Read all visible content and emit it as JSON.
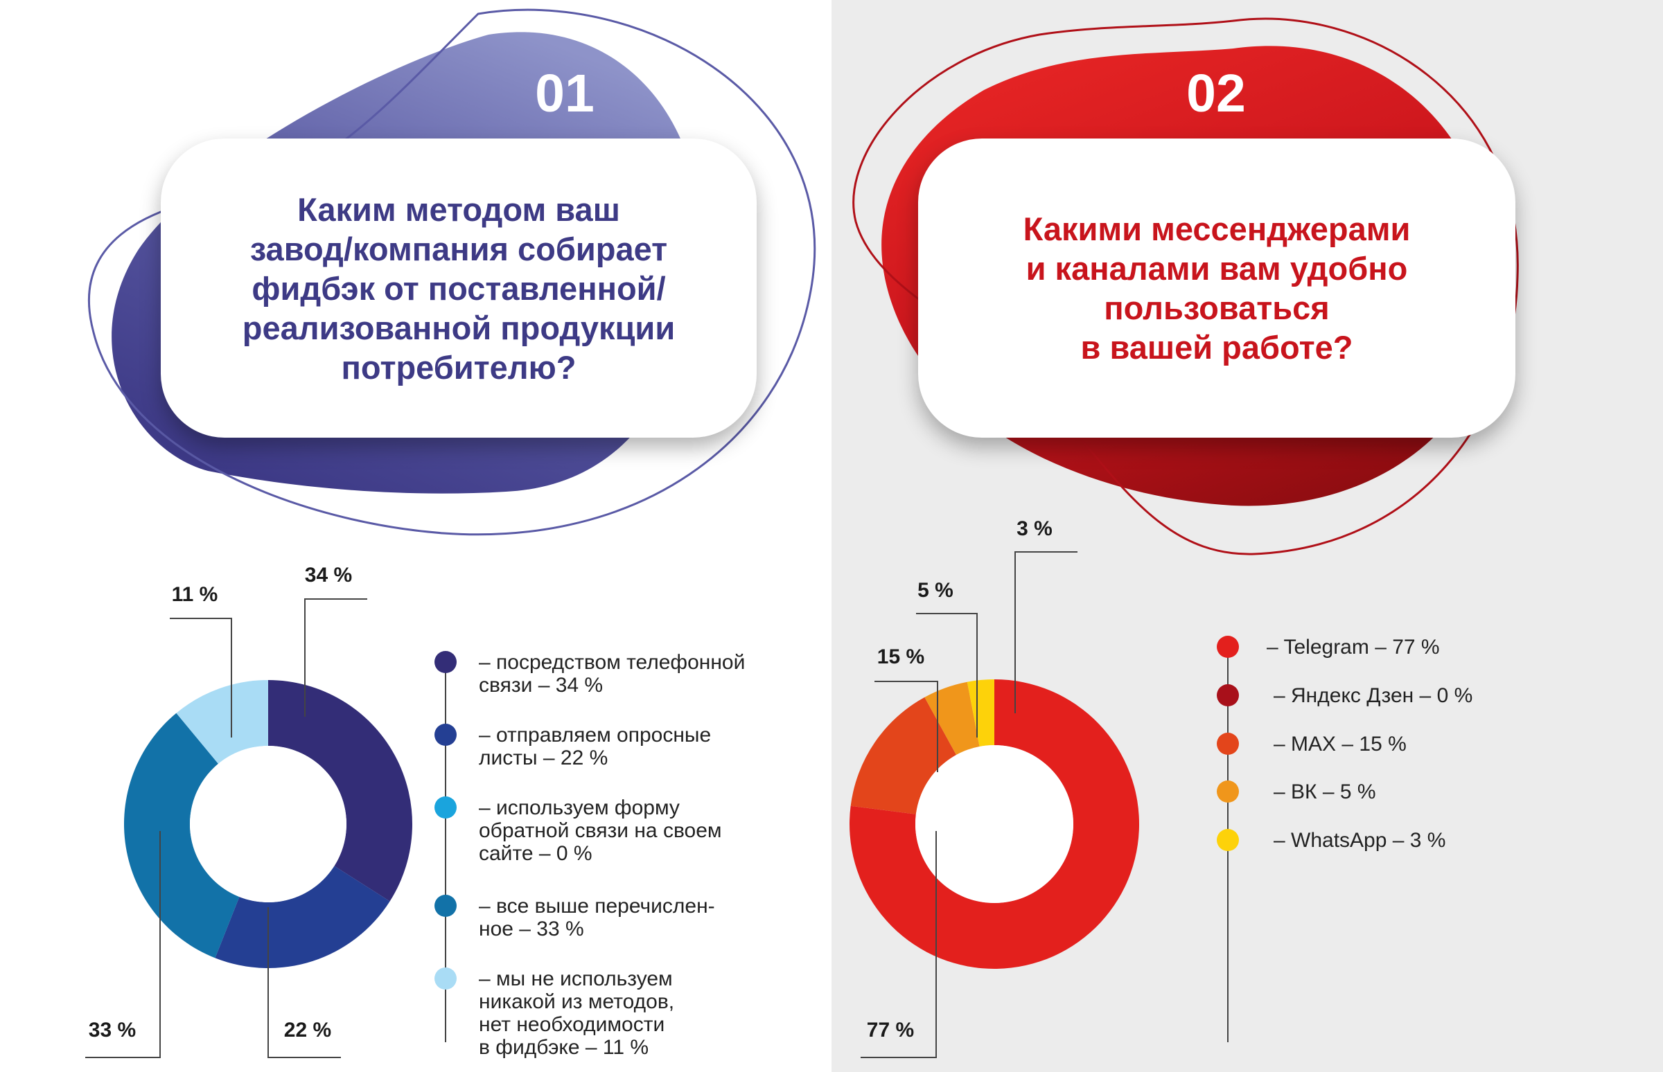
{
  "colors": {
    "left_accent": "#3d3a85",
    "right_accent": "#c8141c",
    "right_panel_bg": "#ececec"
  },
  "left": {
    "number": "01",
    "question": "Каким методом ваш\nзавод/компания собирает\nфидбэк от поставленной/\nреализованной продукции\nпотребителю?",
    "legend": [
      {
        "text": "– посредством телефонной\nсвязи – 34 %",
        "color": "#332d77"
      },
      {
        "text": "– отправляем опросные\nлисты – 22 %",
        "color": "#243f93"
      },
      {
        "text": "– используем форму\nобратной связи на своем\nсайте – 0 %",
        "color": "#1aa4dd"
      },
      {
        "text": "– все выше перечислен-\nное – 33 %",
        "color": "#1272a8"
      },
      {
        "text": "– мы не используем\nникакой из методов,\nнет необходимости\nв фидбэке – 11 %",
        "color": "#a9dcf5"
      }
    ]
  },
  "right": {
    "number": "02",
    "question": "Какими мессенджерами\nи каналами вам удобно\nпользоваться\nв вашей работе?",
    "legend": [
      {
        "text": "–  Telegram – 77 %",
        "color": "#e3201d"
      },
      {
        "text": "–  Яндекс Дзен – 0 %",
        "color": "#a8101a"
      },
      {
        "text": "–  MAX – 15 %",
        "color": "#e3451b"
      },
      {
        "text": "–  ВК – 5 %",
        "color": "#f0961b"
      },
      {
        "text": "–  WhatsApp – 3 %",
        "color": "#fdd20a"
      }
    ]
  },
  "chart_data": [
    {
      "type": "pie",
      "categories": [
        "посредством телефонной связи",
        "отправляем опросные листы",
        "используем форму обратной связи на своем сайте",
        "все выше перечисленное",
        "мы не используем никакой из методов, нет необходимости в фидбэке"
      ],
      "values": [
        34,
        22,
        0,
        33,
        11
      ],
      "colors": [
        "#332d77",
        "#243f93",
        "#1aa4dd",
        "#1272a8",
        "#a9dcf5"
      ],
      "data_labels": [
        "34 %",
        "22 %",
        "",
        "33 %",
        "11 %"
      ],
      "donut": true,
      "legend": "right"
    },
    {
      "type": "pie",
      "categories": [
        "Telegram",
        "Яндекс Дзен",
        "MAX",
        "ВК",
        "WhatsApp"
      ],
      "values": [
        77,
        0,
        15,
        5,
        3
      ],
      "colors": [
        "#e3201d",
        "#a8101a",
        "#e3451b",
        "#f0961b",
        "#fdd20a"
      ],
      "data_labels": [
        "77 %",
        "",
        "15 %",
        "5 %",
        "3 %"
      ],
      "donut": true,
      "legend": "right"
    }
  ]
}
